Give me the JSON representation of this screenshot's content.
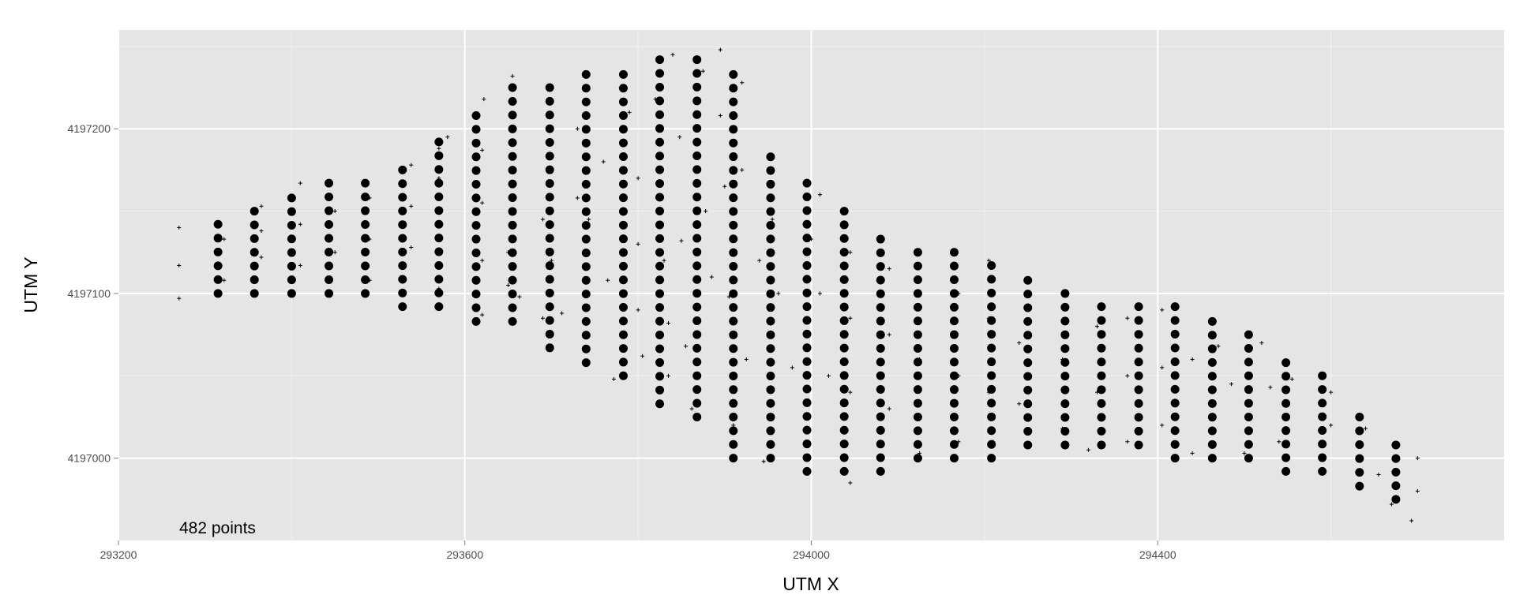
{
  "chart_data": {
    "type": "scatter",
    "title": "",
    "xlabel": "UTM X",
    "ylabel": "UTM Y",
    "xlim": [
      293200,
      294800
    ],
    "ylim": [
      4196950,
      4197260
    ],
    "x_ticks": [
      293200,
      293600,
      294000,
      294400
    ],
    "y_ticks": [
      4197000,
      4197100,
      4197200
    ],
    "grid": true,
    "legend": "none",
    "annotation": "482 points",
    "colors": {
      "panel": "#e5e5e5",
      "grid": "#ffffff",
      "points": "#000000"
    },
    "series": [
      {
        "marker": "filled-circle",
        "columns": [
          {
            "x": 293315,
            "y_min": 4197100,
            "y_max": 4197142
          },
          {
            "x": 293357,
            "y_min": 4197100,
            "y_max": 4197150
          },
          {
            "x": 293400,
            "y_min": 4197100,
            "y_max": 4197158
          },
          {
            "x": 293443,
            "y_min": 4197100,
            "y_max": 4197167
          },
          {
            "x": 293485,
            "y_min": 4197100,
            "y_max": 4197167
          },
          {
            "x": 293528,
            "y_min": 4197092,
            "y_max": 4197175
          },
          {
            "x": 293570,
            "y_min": 4197092,
            "y_max": 4197192
          },
          {
            "x": 293613,
            "y_min": 4197083,
            "y_max": 4197208
          },
          {
            "x": 293655,
            "y_min": 4197083,
            "y_max": 4197225
          },
          {
            "x": 293698,
            "y_min": 4197067,
            "y_max": 4197225
          },
          {
            "x": 293740,
            "y_min": 4197058,
            "y_max": 4197233
          },
          {
            "x": 293783,
            "y_min": 4197050,
            "y_max": 4197233
          },
          {
            "x": 293825,
            "y_min": 4197033,
            "y_max": 4197242
          },
          {
            "x": 293868,
            "y_min": 4197025,
            "y_max": 4197242
          },
          {
            "x": 293910,
            "y_min": 4197000,
            "y_max": 4197233
          },
          {
            "x": 293953,
            "y_min": 4197000,
            "y_max": 4197183
          },
          {
            "x": 293995,
            "y_min": 4196992,
            "y_max": 4197167
          },
          {
            "x": 294038,
            "y_min": 4196992,
            "y_max": 4197150
          },
          {
            "x": 294080,
            "y_min": 4196992,
            "y_max": 4197133
          },
          {
            "x": 294123,
            "y_min": 4197000,
            "y_max": 4197125
          },
          {
            "x": 294165,
            "y_min": 4197000,
            "y_max": 4197125
          },
          {
            "x": 294208,
            "y_min": 4197000,
            "y_max": 4197117
          },
          {
            "x": 294250,
            "y_min": 4197008,
            "y_max": 4197108
          },
          {
            "x": 294293,
            "y_min": 4197008,
            "y_max": 4197100
          },
          {
            "x": 294335,
            "y_min": 4197008,
            "y_max": 4197092
          },
          {
            "x": 294378,
            "y_min": 4197008,
            "y_max": 4197092
          },
          {
            "x": 294420,
            "y_min": 4197000,
            "y_max": 4197092
          },
          {
            "x": 294463,
            "y_min": 4197000,
            "y_max": 4197083
          },
          {
            "x": 294505,
            "y_min": 4197000,
            "y_max": 4197075
          },
          {
            "x": 294548,
            "y_min": 4196992,
            "y_max": 4197058
          },
          {
            "x": 294590,
            "y_min": 4196992,
            "y_max": 4197050
          },
          {
            "x": 294633,
            "y_min": 4196983,
            "y_max": 4197025
          },
          {
            "x": 294675,
            "y_min": 4196975,
            "y_max": 4197008
          }
        ],
        "spacing": 8.33
      },
      {
        "marker": "cross",
        "points": [
          [
            293270,
            4197140
          ],
          [
            293270,
            4197117
          ],
          [
            293270,
            4197097
          ],
          [
            293322,
            4197133
          ],
          [
            293322,
            4197108
          ],
          [
            293365,
            4197153
          ],
          [
            293365,
            4197138
          ],
          [
            293365,
            4197122
          ],
          [
            293410,
            4197167
          ],
          [
            293410,
            4197142
          ],
          [
            293410,
            4197117
          ],
          [
            293450,
            4197150
          ],
          [
            293450,
            4197125
          ],
          [
            293490,
            4197158
          ],
          [
            293490,
            4197133
          ],
          [
            293490,
            4197108
          ],
          [
            293538,
            4197178
          ],
          [
            293538,
            4197153
          ],
          [
            293538,
            4197128
          ],
          [
            293570,
            4197188
          ],
          [
            293570,
            4197170
          ],
          [
            293570,
            4197150
          ],
          [
            293570,
            4197103
          ],
          [
            293580,
            4197195
          ],
          [
            293620,
            4197187
          ],
          [
            293620,
            4197155
          ],
          [
            293620,
            4197120
          ],
          [
            293620,
            4197087
          ],
          [
            293622,
            4197218
          ],
          [
            293655,
            4197232
          ],
          [
            293655,
            4197175
          ],
          [
            293650,
            4197125
          ],
          [
            293650,
            4197105
          ],
          [
            293663,
            4197098
          ],
          [
            293690,
            4197145
          ],
          [
            293690,
            4197085
          ],
          [
            293700,
            4197120
          ],
          [
            293712,
            4197088
          ],
          [
            293730,
            4197200
          ],
          [
            293730,
            4197158
          ],
          [
            293743,
            4197145
          ],
          [
            293760,
            4197180
          ],
          [
            293765,
            4197108
          ],
          [
            293772,
            4197048
          ],
          [
            293780,
            4197225
          ],
          [
            293790,
            4197210
          ],
          [
            293800,
            4197170
          ],
          [
            293800,
            4197130
          ],
          [
            293800,
            4197090
          ],
          [
            293805,
            4197062
          ],
          [
            293820,
            4197218
          ],
          [
            293822,
            4197158
          ],
          [
            293830,
            4197120
          ],
          [
            293835,
            4197082
          ],
          [
            293835,
            4197050
          ],
          [
            293840,
            4197245
          ],
          [
            293848,
            4197195
          ],
          [
            293850,
            4197132
          ],
          [
            293855,
            4197068
          ],
          [
            293862,
            4197030
          ],
          [
            293875,
            4197235
          ],
          [
            293878,
            4197150
          ],
          [
            293885,
            4197110
          ],
          [
            293895,
            4197248
          ],
          [
            293895,
            4197208
          ],
          [
            293900,
            4197165
          ],
          [
            293905,
            4197098
          ],
          [
            293910,
            4197020
          ],
          [
            293920,
            4197228
          ],
          [
            293920,
            4197175
          ],
          [
            293925,
            4197060
          ],
          [
            293940,
            4197120
          ],
          [
            293945,
            4196998
          ],
          [
            293955,
            4197145
          ],
          [
            293962,
            4197100
          ],
          [
            293978,
            4197055
          ],
          [
            294000,
            4197133
          ],
          [
            294010,
            4197160
          ],
          [
            294010,
            4197100
          ],
          [
            294020,
            4197050
          ],
          [
            294045,
            4197125
          ],
          [
            294045,
            4197085
          ],
          [
            294045,
            4197040
          ],
          [
            294045,
            4196985
          ],
          [
            294090,
            4197115
          ],
          [
            294090,
            4197075
          ],
          [
            294090,
            4197030
          ],
          [
            294125,
            4197108
          ],
          [
            294125,
            4197060
          ],
          [
            294125,
            4197003
          ],
          [
            294170,
            4197100
          ],
          [
            294170,
            4197050
          ],
          [
            294170,
            4197010
          ],
          [
            294205,
            4197120
          ],
          [
            294205,
            4197085
          ],
          [
            294205,
            4197040
          ],
          [
            294210,
            4197010
          ],
          [
            294240,
            4197070
          ],
          [
            294240,
            4197033
          ],
          [
            294290,
            4197060
          ],
          [
            294290,
            4197018
          ],
          [
            294320,
            4197005
          ],
          [
            294330,
            4197080
          ],
          [
            294330,
            4197040
          ],
          [
            294365,
            4197085
          ],
          [
            294365,
            4197050
          ],
          [
            294365,
            4197010
          ],
          [
            294405,
            4197090
          ],
          [
            294405,
            4197055
          ],
          [
            294405,
            4197020
          ],
          [
            294440,
            4197060
          ],
          [
            294440,
            4197003
          ],
          [
            294470,
            4197068
          ],
          [
            294485,
            4197045
          ],
          [
            294500,
            4197003
          ],
          [
            294520,
            4197070
          ],
          [
            294530,
            4197043
          ],
          [
            294540,
            4197010
          ],
          [
            294555,
            4197048
          ],
          [
            294600,
            4197040
          ],
          [
            294600,
            4197020
          ],
          [
            294640,
            4197018
          ],
          [
            294655,
            4196990
          ],
          [
            294670,
            4196972
          ],
          [
            294700,
            4197000
          ],
          [
            294700,
            4196980
          ],
          [
            294693,
            4196962
          ]
        ]
      }
    ]
  }
}
